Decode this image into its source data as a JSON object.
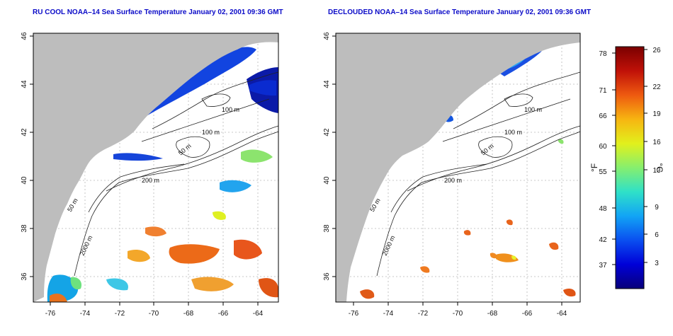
{
  "panels": [
    {
      "title": "RU COOL NOAA–14 Sea Surface Temperature January 02, 2001 09:36 GMT",
      "x_ticks": [
        "-76",
        "-74",
        "-72",
        "-70",
        "-68",
        "-66",
        "-64"
      ],
      "y_ticks": [
        "46",
        "44",
        "42",
        "40",
        "38",
        "36"
      ],
      "contour_labels": [
        "100 m",
        "100 m",
        "50 m",
        "200 m",
        "50 m",
        "2000 m"
      ]
    },
    {
      "title": "DECLOUDED NOAA–14 Sea Surface Temperature January 02, 2001 09:36 GMT",
      "x_ticks": [
        "-76",
        "-74",
        "-72",
        "-70",
        "-68",
        "-66",
        "-64"
      ],
      "y_ticks": [
        "46",
        "44",
        "42",
        "40",
        "38",
        "36"
      ],
      "contour_labels": [
        "100 m",
        "100 m",
        "50 m",
        "200 m",
        "50 m",
        "2000 m"
      ]
    }
  ],
  "colorbar": {
    "f_label": "°F",
    "c_label": "°C",
    "f_ticks": [
      "78",
      "71",
      "66",
      "60",
      "55",
      "48",
      "42",
      "37"
    ],
    "c_ticks": [
      "26",
      "22",
      "19",
      "16",
      "13",
      "9",
      "6",
      "3"
    ],
    "colors": [
      "#08007a",
      "#0000d8",
      "#0a4ff0",
      "#12a4f5",
      "#2fe1c8",
      "#86ef6e",
      "#e2f01c",
      "#f7b511",
      "#ee5a10",
      "#c01108",
      "#7a0000"
    ]
  },
  "colors": {
    "land": "#bdbdbd",
    "ocean": "#ffffff",
    "title": "#0b0bc8"
  }
}
